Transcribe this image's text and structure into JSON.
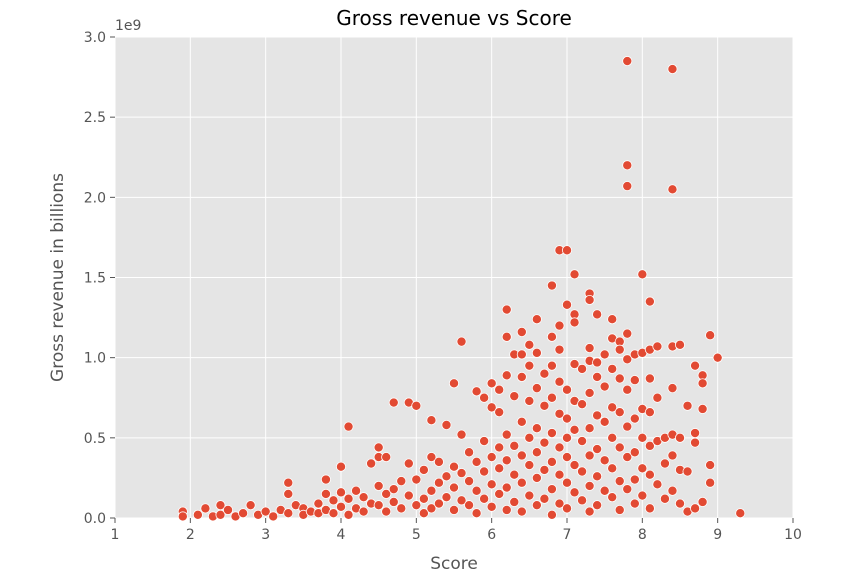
{
  "chart_data": {
    "type": "scatter",
    "title": "Gross revenue vs Score",
    "xlabel": "Score",
    "ylabel": "Gross revenue in billions",
    "y_offset_label": "1e9",
    "xlim": [
      1,
      10
    ],
    "ylim": [
      0,
      3.0
    ],
    "x_ticks": [
      "1",
      "2",
      "3",
      "4",
      "5",
      "6",
      "7",
      "8",
      "9",
      "10"
    ],
    "y_ticks": [
      "0.0",
      "0.5",
      "1.0",
      "1.5",
      "2.0",
      "2.5",
      "3.0"
    ],
    "grid": true,
    "background": "#e5e5e5",
    "grid_color": "#ffffff",
    "marker_color": "#e24a33",
    "marker_edge": "#ffffff",
    "series": [
      {
        "points": [
          [
            1.9,
            0.04
          ],
          [
            1.9,
            0.01
          ],
          [
            2.1,
            0.02
          ],
          [
            2.2,
            0.06
          ],
          [
            2.3,
            0.01
          ],
          [
            2.4,
            0.08
          ],
          [
            2.4,
            0.02
          ],
          [
            2.5,
            0.05
          ],
          [
            2.6,
            0.01
          ],
          [
            2.7,
            0.03
          ],
          [
            2.8,
            0.08
          ],
          [
            2.9,
            0.02
          ],
          [
            3.0,
            0.04
          ],
          [
            3.1,
            0.01
          ],
          [
            3.2,
            0.05
          ],
          [
            3.3,
            0.22
          ],
          [
            3.3,
            0.15
          ],
          [
            3.3,
            0.03
          ],
          [
            3.4,
            0.08
          ],
          [
            3.5,
            0.06
          ],
          [
            3.5,
            0.02
          ],
          [
            3.6,
            0.04
          ],
          [
            3.7,
            0.09
          ],
          [
            3.7,
            0.03
          ],
          [
            3.8,
            0.24
          ],
          [
            3.8,
            0.15
          ],
          [
            3.8,
            0.05
          ],
          [
            3.9,
            0.11
          ],
          [
            3.9,
            0.03
          ],
          [
            4.0,
            0.32
          ],
          [
            4.0,
            0.16
          ],
          [
            4.0,
            0.07
          ],
          [
            4.1,
            0.57
          ],
          [
            4.1,
            0.12
          ],
          [
            4.1,
            0.02
          ],
          [
            4.2,
            0.17
          ],
          [
            4.2,
            0.06
          ],
          [
            4.3,
            0.13
          ],
          [
            4.3,
            0.04
          ],
          [
            4.4,
            0.34
          ],
          [
            4.4,
            0.09
          ],
          [
            4.5,
            0.44
          ],
          [
            4.5,
            0.38
          ],
          [
            4.5,
            0.2
          ],
          [
            4.5,
            0.08
          ],
          [
            4.6,
            0.38
          ],
          [
            4.6,
            0.15
          ],
          [
            4.6,
            0.04
          ],
          [
            4.7,
            0.72
          ],
          [
            4.7,
            0.18
          ],
          [
            4.7,
            0.1
          ],
          [
            4.8,
            0.23
          ],
          [
            4.8,
            0.06
          ],
          [
            4.9,
            0.72
          ],
          [
            4.9,
            0.34
          ],
          [
            4.9,
            0.14
          ],
          [
            5.0,
            0.7
          ],
          [
            5.0,
            0.24
          ],
          [
            5.0,
            0.08
          ],
          [
            5.1,
            0.3
          ],
          [
            5.1,
            0.12
          ],
          [
            5.1,
            0.03
          ],
          [
            5.2,
            0.61
          ],
          [
            5.2,
            0.38
          ],
          [
            5.2,
            0.17
          ],
          [
            5.2,
            0.06
          ],
          [
            5.3,
            0.35
          ],
          [
            5.3,
            0.22
          ],
          [
            5.3,
            0.09
          ],
          [
            5.4,
            0.58
          ],
          [
            5.4,
            0.26
          ],
          [
            5.4,
            0.13
          ],
          [
            5.5,
            0.84
          ],
          [
            5.5,
            0.32
          ],
          [
            5.5,
            0.19
          ],
          [
            5.5,
            0.05
          ],
          [
            5.6,
            1.1
          ],
          [
            5.6,
            0.52
          ],
          [
            5.6,
            0.28
          ],
          [
            5.6,
            0.11
          ],
          [
            5.7,
            0.41
          ],
          [
            5.7,
            0.23
          ],
          [
            5.7,
            0.08
          ],
          [
            5.8,
            0.79
          ],
          [
            5.8,
            0.35
          ],
          [
            5.8,
            0.17
          ],
          [
            5.8,
            0.03
          ],
          [
            5.9,
            0.75
          ],
          [
            5.9,
            0.48
          ],
          [
            5.9,
            0.29
          ],
          [
            5.9,
            0.12
          ],
          [
            6.0,
            0.84
          ],
          [
            6.0,
            0.69
          ],
          [
            6.0,
            0.38
          ],
          [
            6.0,
            0.21
          ],
          [
            6.0,
            0.07
          ],
          [
            6.1,
            0.8
          ],
          [
            6.1,
            0.66
          ],
          [
            6.1,
            0.44
          ],
          [
            6.1,
            0.31
          ],
          [
            6.1,
            0.15
          ],
          [
            6.2,
            1.3
          ],
          [
            6.2,
            1.13
          ],
          [
            6.2,
            0.89
          ],
          [
            6.2,
            0.52
          ],
          [
            6.2,
            0.36
          ],
          [
            6.2,
            0.19
          ],
          [
            6.2,
            0.05
          ],
          [
            6.3,
            1.02
          ],
          [
            6.3,
            0.76
          ],
          [
            6.3,
            0.45
          ],
          [
            6.3,
            0.27
          ],
          [
            6.3,
            0.1
          ],
          [
            6.4,
            1.16
          ],
          [
            6.4,
            1.02
          ],
          [
            6.4,
            0.88
          ],
          [
            6.4,
            0.6
          ],
          [
            6.4,
            0.39
          ],
          [
            6.4,
            0.22
          ],
          [
            6.4,
            0.04
          ],
          [
            6.5,
            1.08
          ],
          [
            6.5,
            0.95
          ],
          [
            6.5,
            0.73
          ],
          [
            6.5,
            0.5
          ],
          [
            6.5,
            0.33
          ],
          [
            6.5,
            0.14
          ],
          [
            6.6,
            1.24
          ],
          [
            6.6,
            1.03
          ],
          [
            6.6,
            0.81
          ],
          [
            6.6,
            0.56
          ],
          [
            6.6,
            0.41
          ],
          [
            6.6,
            0.25
          ],
          [
            6.6,
            0.08
          ],
          [
            6.7,
            0.9
          ],
          [
            6.7,
            0.7
          ],
          [
            6.7,
            0.47
          ],
          [
            6.7,
            0.3
          ],
          [
            6.7,
            0.12
          ],
          [
            6.8,
            1.45
          ],
          [
            6.8,
            1.13
          ],
          [
            6.8,
            0.95
          ],
          [
            6.8,
            0.75
          ],
          [
            6.8,
            0.53
          ],
          [
            6.8,
            0.35
          ],
          [
            6.8,
            0.18
          ],
          [
            6.8,
            0.02
          ],
          [
            6.9,
            1.67
          ],
          [
            6.9,
            1.2
          ],
          [
            6.9,
            1.05
          ],
          [
            6.9,
            0.85
          ],
          [
            6.9,
            0.65
          ],
          [
            6.9,
            0.44
          ],
          [
            6.9,
            0.27
          ],
          [
            6.9,
            0.09
          ],
          [
            7.0,
            1.67
          ],
          [
            7.0,
            1.33
          ],
          [
            7.0,
            0.8
          ],
          [
            7.0,
            0.62
          ],
          [
            7.0,
            0.5
          ],
          [
            7.0,
            0.38
          ],
          [
            7.0,
            0.22
          ],
          [
            7.0,
            0.06
          ],
          [
            7.1,
            1.52
          ],
          [
            7.1,
            1.27
          ],
          [
            7.1,
            1.22
          ],
          [
            7.1,
            0.96
          ],
          [
            7.1,
            0.73
          ],
          [
            7.1,
            0.55
          ],
          [
            7.1,
            0.33
          ],
          [
            7.1,
            0.16
          ],
          [
            7.2,
            0.93
          ],
          [
            7.2,
            0.71
          ],
          [
            7.2,
            0.48
          ],
          [
            7.2,
            0.29
          ],
          [
            7.2,
            0.11
          ],
          [
            7.3,
            1.4
          ],
          [
            7.3,
            1.36
          ],
          [
            7.3,
            1.06
          ],
          [
            7.3,
            0.98
          ],
          [
            7.3,
            0.78
          ],
          [
            7.3,
            0.56
          ],
          [
            7.3,
            0.39
          ],
          [
            7.3,
            0.2
          ],
          [
            7.3,
            0.04
          ],
          [
            7.4,
            1.27
          ],
          [
            7.4,
            0.97
          ],
          [
            7.4,
            0.88
          ],
          [
            7.4,
            0.64
          ],
          [
            7.4,
            0.43
          ],
          [
            7.4,
            0.26
          ],
          [
            7.4,
            0.08
          ],
          [
            7.5,
            1.02
          ],
          [
            7.5,
            0.82
          ],
          [
            7.5,
            0.6
          ],
          [
            7.5,
            0.36
          ],
          [
            7.5,
            0.17
          ],
          [
            7.6,
            1.24
          ],
          [
            7.6,
            1.12
          ],
          [
            7.6,
            0.93
          ],
          [
            7.6,
            0.69
          ],
          [
            7.6,
            0.5
          ],
          [
            7.6,
            0.31
          ],
          [
            7.6,
            0.13
          ],
          [
            7.7,
            1.1
          ],
          [
            7.7,
            1.05
          ],
          [
            7.7,
            0.87
          ],
          [
            7.7,
            0.66
          ],
          [
            7.7,
            0.44
          ],
          [
            7.7,
            0.23
          ],
          [
            7.7,
            0.05
          ],
          [
            7.8,
            2.85
          ],
          [
            7.8,
            2.2
          ],
          [
            7.8,
            2.07
          ],
          [
            7.8,
            1.15
          ],
          [
            7.8,
            0.99
          ],
          [
            7.8,
            0.8
          ],
          [
            7.8,
            0.57
          ],
          [
            7.8,
            0.38
          ],
          [
            7.8,
            0.18
          ],
          [
            7.9,
            1.02
          ],
          [
            7.9,
            0.86
          ],
          [
            7.9,
            0.62
          ],
          [
            7.9,
            0.41
          ],
          [
            7.9,
            0.24
          ],
          [
            7.9,
            0.09
          ],
          [
            8.0,
            1.52
          ],
          [
            8.0,
            1.03
          ],
          [
            8.0,
            0.68
          ],
          [
            8.0,
            0.5
          ],
          [
            8.0,
            0.31
          ],
          [
            8.0,
            0.14
          ],
          [
            8.1,
            1.35
          ],
          [
            8.1,
            1.05
          ],
          [
            8.1,
            0.87
          ],
          [
            8.1,
            0.66
          ],
          [
            8.1,
            0.45
          ],
          [
            8.1,
            0.27
          ],
          [
            8.1,
            0.06
          ],
          [
            8.2,
            1.07
          ],
          [
            8.2,
            0.75
          ],
          [
            8.2,
            0.48
          ],
          [
            8.2,
            0.21
          ],
          [
            8.3,
            0.5
          ],
          [
            8.3,
            0.34
          ],
          [
            8.3,
            0.12
          ],
          [
            8.4,
            2.8
          ],
          [
            8.4,
            2.05
          ],
          [
            8.4,
            1.07
          ],
          [
            8.4,
            0.81
          ],
          [
            8.4,
            0.52
          ],
          [
            8.4,
            0.39
          ],
          [
            8.4,
            0.17
          ],
          [
            8.5,
            1.08
          ],
          [
            8.5,
            0.5
          ],
          [
            8.5,
            0.3
          ],
          [
            8.5,
            0.09
          ],
          [
            8.6,
            0.7
          ],
          [
            8.6,
            0.29
          ],
          [
            8.6,
            0.04
          ],
          [
            8.7,
            0.95
          ],
          [
            8.7,
            0.53
          ],
          [
            8.7,
            0.47
          ],
          [
            8.7,
            0.06
          ],
          [
            8.8,
            0.89
          ],
          [
            8.8,
            0.84
          ],
          [
            8.8,
            0.68
          ],
          [
            8.8,
            0.1
          ],
          [
            8.9,
            1.14
          ],
          [
            8.9,
            0.33
          ],
          [
            8.9,
            0.22
          ],
          [
            9.0,
            1.0
          ],
          [
            9.3,
            0.03
          ]
        ]
      }
    ]
  }
}
